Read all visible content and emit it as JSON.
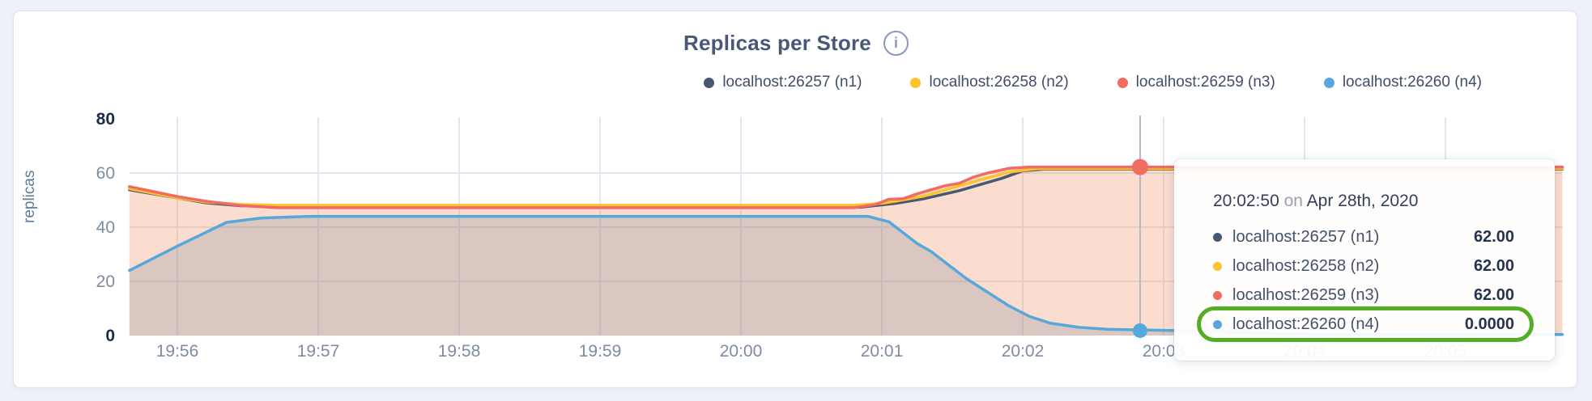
{
  "header": {
    "title": "Replicas per Store",
    "info_icon": "i"
  },
  "legend": {
    "items": [
      {
        "label": "localhost:26257 (n1)",
        "color": "#475872"
      },
      {
        "label": "localhost:26258 (n2)",
        "color": "#fdc32f"
      },
      {
        "label": "localhost:26259 (n3)",
        "color": "#f16b63"
      },
      {
        "label": "localhost:26260 (n4)",
        "color": "#57a8da"
      }
    ]
  },
  "chart_data": {
    "type": "area",
    "title": "Replicas per Store",
    "xlabel": "",
    "ylabel": "replicas",
    "ylim": [
      0,
      80
    ],
    "grid": true,
    "legend_position": "top-right",
    "y_ticks": [
      {
        "value": 0,
        "label": "0",
        "bold": true
      },
      {
        "value": 20,
        "label": "20",
        "bold": false
      },
      {
        "value": 40,
        "label": "40",
        "bold": false
      },
      {
        "value": 60,
        "label": "60",
        "bold": false
      },
      {
        "value": 80,
        "label": "80",
        "bold": true
      }
    ],
    "x_ticks": [
      {
        "t": 1,
        "label": "19:56"
      },
      {
        "t": 2,
        "label": "19:57"
      },
      {
        "t": 3,
        "label": "19:58"
      },
      {
        "t": 4,
        "label": "19:59"
      },
      {
        "t": 5,
        "label": "20:00"
      },
      {
        "t": 6,
        "label": "20:01"
      },
      {
        "t": 7,
        "label": "20:02"
      },
      {
        "t": 8,
        "label": "20:03"
      },
      {
        "t": 9,
        "label": "20:04"
      },
      {
        "t": 10,
        "label": "20:05"
      }
    ],
    "x_domain_minutes_after_1955": [
      0.66,
      10.83
    ],
    "fill_envelope_top": [
      [
        0.66,
        55
      ],
      [
        1.0,
        51.3
      ],
      [
        1.2,
        49.6
      ],
      [
        1.45,
        48.4
      ],
      [
        1.7,
        48.1
      ],
      [
        5.8,
        48.1
      ],
      [
        5.95,
        48.5
      ],
      [
        6.05,
        50.3
      ],
      [
        6.15,
        50.7
      ],
      [
        6.25,
        52.3
      ],
      [
        6.45,
        55.3
      ],
      [
        6.55,
        56.3
      ],
      [
        6.65,
        58.5
      ],
      [
        6.75,
        60.0
      ],
      [
        6.9,
        61.7
      ],
      [
        7.05,
        62.2
      ],
      [
        10.83,
        62.2
      ]
    ],
    "series": [
      {
        "name": "localhost:26257 (n1)",
        "color": "#475872",
        "points": [
          [
            0.66,
            53.8
          ],
          [
            1.2,
            49.0
          ],
          [
            1.45,
            47.9
          ],
          [
            1.95,
            47.4
          ],
          [
            5.85,
            47.4
          ],
          [
            6.1,
            48.8
          ],
          [
            6.3,
            50.5
          ],
          [
            6.45,
            52.3
          ],
          [
            6.55,
            53.5
          ],
          [
            6.75,
            56.5
          ],
          [
            6.85,
            58.0
          ],
          [
            7.0,
            60.8
          ],
          [
            7.15,
            61.4
          ],
          [
            10.83,
            61.4
          ]
        ]
      },
      {
        "name": "localhost:26258 (n2)",
        "color": "#fdc32f",
        "points": [
          [
            0.66,
            54.2
          ],
          [
            1.0,
            50.8
          ],
          [
            1.2,
            49.3
          ],
          [
            1.45,
            48.4
          ],
          [
            1.7,
            48.1
          ],
          [
            5.8,
            48.1
          ],
          [
            6.0,
            48.8
          ],
          [
            6.1,
            49.6
          ],
          [
            6.3,
            51.5
          ],
          [
            6.5,
            54.5
          ],
          [
            6.7,
            57.5
          ],
          [
            6.9,
            60.3
          ],
          [
            7.1,
            61.6
          ],
          [
            10.83,
            61.6
          ]
        ]
      },
      {
        "name": "localhost:26259 (n3)",
        "color": "#f16b63",
        "points": [
          [
            0.66,
            55
          ],
          [
            1.0,
            51.3
          ],
          [
            1.2,
            49.6
          ],
          [
            1.45,
            48.0
          ],
          [
            1.7,
            47.2
          ],
          [
            1.95,
            47.2
          ],
          [
            5.8,
            47.2
          ],
          [
            5.95,
            48.3
          ],
          [
            6.05,
            50.3
          ],
          [
            6.15,
            50.5
          ],
          [
            6.25,
            52.3
          ],
          [
            6.45,
            55.3
          ],
          [
            6.55,
            56.2
          ],
          [
            6.65,
            58.5
          ],
          [
            6.75,
            60.0
          ],
          [
            6.9,
            61.7
          ],
          [
            7.05,
            62.2
          ],
          [
            10.83,
            62.2
          ]
        ]
      },
      {
        "name": "localhost:26260 (n4)",
        "color": "#57a8da",
        "points": [
          [
            0.66,
            24
          ],
          [
            1.0,
            33
          ],
          [
            1.35,
            41.8
          ],
          [
            1.6,
            43.4
          ],
          [
            1.95,
            44
          ],
          [
            5.9,
            44
          ],
          [
            6.05,
            42
          ],
          [
            6.1,
            40
          ],
          [
            6.25,
            34
          ],
          [
            6.35,
            31
          ],
          [
            6.5,
            25
          ],
          [
            6.6,
            21
          ],
          [
            6.75,
            16
          ],
          [
            6.9,
            11
          ],
          [
            7.05,
            7
          ],
          [
            7.2,
            4.5
          ],
          [
            7.4,
            3
          ],
          [
            7.6,
            2.3
          ],
          [
            7.9,
            2.0
          ],
          [
            8.3,
            1.6
          ],
          [
            8.6,
            1.2
          ],
          [
            8.85,
            0.5
          ],
          [
            9.1,
            0.4
          ],
          [
            10.83,
            0.4
          ]
        ]
      }
    ],
    "hover": {
      "t": 7.833,
      "markers": [
        {
          "value": 62.2,
          "color": "#f16b63",
          "r": 10
        },
        {
          "value": 1.8,
          "color": "#57a8da",
          "r": 9
        }
      ]
    },
    "colors": {
      "grid": "#e2e6ee",
      "hover_line": "#b6bac2",
      "area_top_fill": "rgba(238,150,104,0.32)",
      "area_blue_fill": "rgba(96,114,146,0.20)",
      "tick_regular": "#7d8ca1",
      "tick_bold": "#1d2c49"
    }
  },
  "tooltip": {
    "time": "20:02:50",
    "on_word": "on",
    "date": "Apr 28th, 2020",
    "highlight_color": "#55ad24",
    "rows": [
      {
        "label": "localhost:26257 (n1)",
        "value": "62.00",
        "color": "#475872",
        "highlight": false
      },
      {
        "label": "localhost:26258 (n2)",
        "value": "62.00",
        "color": "#fdc32f",
        "highlight": false
      },
      {
        "label": "localhost:26259 (n3)",
        "value": "62.00",
        "color": "#f16b63",
        "highlight": false
      },
      {
        "label": "localhost:26260 (n4)",
        "value": "0.0000",
        "color": "#57a8da",
        "highlight": true
      }
    ]
  }
}
